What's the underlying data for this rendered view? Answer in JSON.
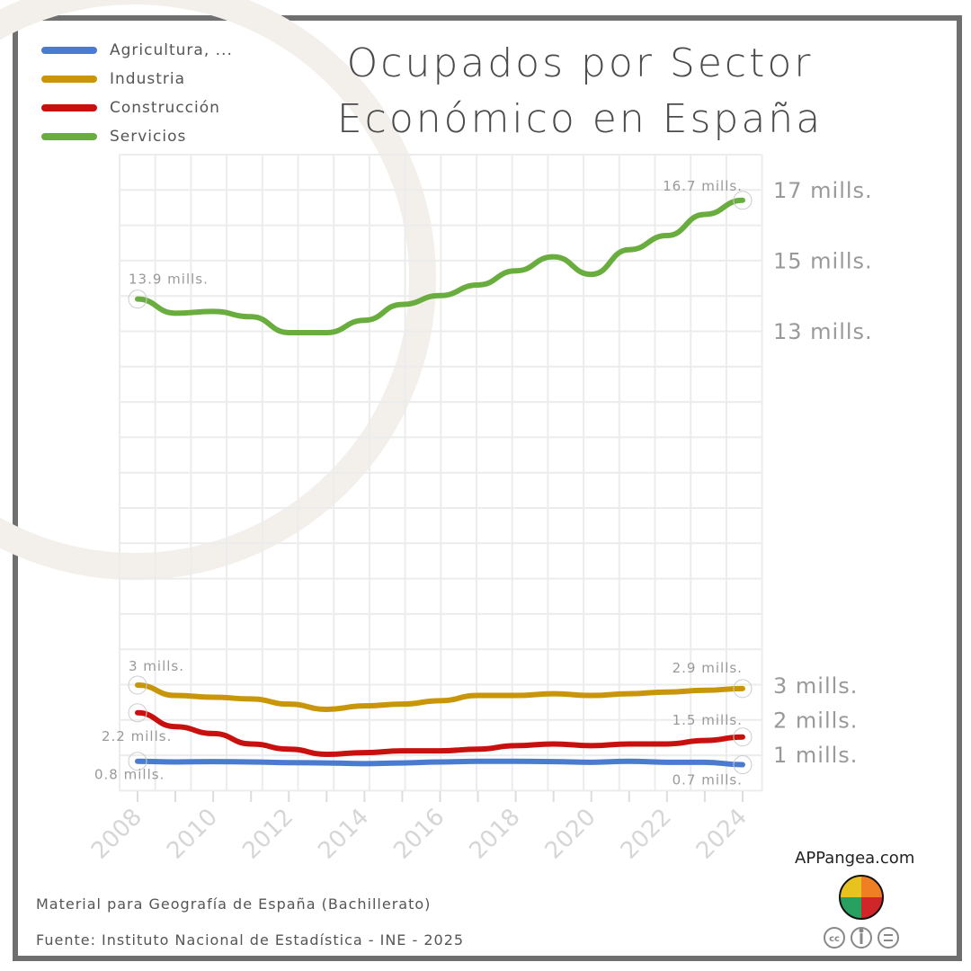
{
  "title_line1": "Ocupados por Sector",
  "title_line2": "Económico en España",
  "legend": [
    {
      "label": "Agricultura, ...",
      "color": "#4a7bd0"
    },
    {
      "label": "Industria",
      "color": "#c9960a"
    },
    {
      "label": "Construcción",
      "color": "#c8100e"
    },
    {
      "label": "Servicios",
      "color": "#6aad3f"
    }
  ],
  "footer": {
    "line1": "Material para Geografía de España (Bachillerato)",
    "line2": "Fuente: Instituto Nacional de Estadística - INE - 2025"
  },
  "brand": "APPangea.com",
  "chart_data": {
    "type": "line",
    "x": [
      2008,
      2009,
      2010,
      2011,
      2012,
      2013,
      2014,
      2015,
      2016,
      2017,
      2018,
      2019,
      2020,
      2021,
      2022,
      2023,
      2024
    ],
    "x_tick_labels": [
      "2008",
      "2010",
      "2012",
      "2014",
      "2016",
      "2018",
      "2020",
      "2022",
      "2024"
    ],
    "y_axis": "broken",
    "y_tick_labels": [
      {
        "value": 17,
        "label": "17 mills."
      },
      {
        "value": 15,
        "label": "15 mills."
      },
      {
        "value": 13,
        "label": "13 mills."
      },
      {
        "value": 3,
        "label": "3 mills."
      },
      {
        "value": 2,
        "label": "2 mills."
      },
      {
        "value": 1,
        "label": "1 mills."
      }
    ],
    "grid": true,
    "legend_position": "top-left",
    "series": [
      {
        "name": "Agricultura, ...",
        "color": "#4a7bd0",
        "values": [
          0.8,
          0.78,
          0.79,
          0.78,
          0.76,
          0.75,
          0.73,
          0.75,
          0.78,
          0.8,
          0.8,
          0.79,
          0.77,
          0.8,
          0.77,
          0.77,
          0.7
        ],
        "labels": {
          "first": "0.8 mills.",
          "last": "0.7 mills."
        }
      },
      {
        "name": "Industria",
        "color": "#c9960a",
        "values": [
          3.0,
          2.7,
          2.65,
          2.6,
          2.45,
          2.3,
          2.4,
          2.45,
          2.55,
          2.7,
          2.7,
          2.75,
          2.7,
          2.75,
          2.8,
          2.85,
          2.9
        ],
        "labels": {
          "first": "3 mills.",
          "last": "2.9 mills."
        }
      },
      {
        "name": "Construcción",
        "color": "#c8100e",
        "values": [
          2.2,
          1.8,
          1.6,
          1.3,
          1.15,
          1.0,
          1.05,
          1.1,
          1.1,
          1.15,
          1.25,
          1.3,
          1.25,
          1.3,
          1.3,
          1.4,
          1.5
        ],
        "labels": {
          "first": "2.2 mills.",
          "last": "1.5 mills."
        }
      },
      {
        "name": "Servicios",
        "color": "#6aad3f",
        "values": [
          13.9,
          13.5,
          13.55,
          13.4,
          12.95,
          12.95,
          13.3,
          13.75,
          14.0,
          14.3,
          14.7,
          15.1,
          14.6,
          15.3,
          15.7,
          16.3,
          16.7
        ],
        "labels": {
          "first": "13.9 mills.",
          "last": "16.7 mills."
        }
      }
    ]
  }
}
